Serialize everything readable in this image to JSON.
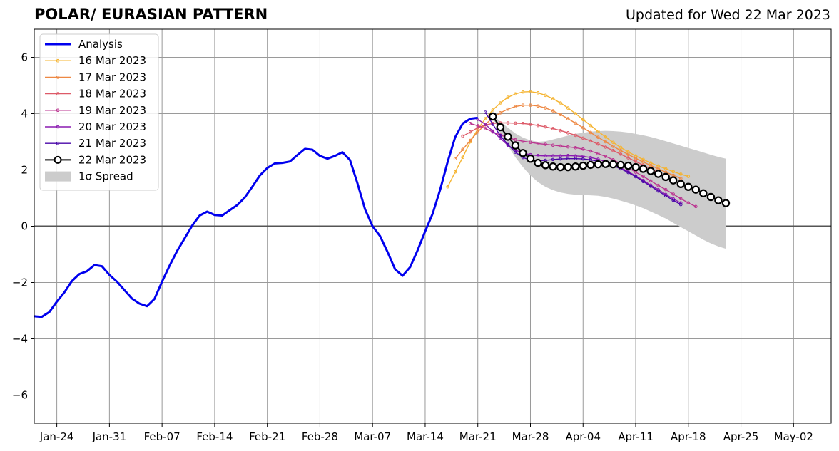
{
  "header": {
    "title": "POLAR/ EURASIAN  PATTERN",
    "subtitle": "Updated for Wed 22 Mar 2023"
  },
  "chart_data": {
    "type": "line",
    "title": "POLAR/ EURASIAN  PATTERN",
    "subtitle": "Updated for Wed 22 Mar 2023",
    "xlabel": "",
    "ylabel": "",
    "x_units": "days since 2023-01-21",
    "xlim": [
      0,
      106
    ],
    "ylim": [
      -7,
      7
    ],
    "grid": true,
    "legend_position": "top-left",
    "x_ticks": [
      {
        "x": 3,
        "label": "Jan-24"
      },
      {
        "x": 10,
        "label": "Jan-31"
      },
      {
        "x": 17,
        "label": "Feb-07"
      },
      {
        "x": 24,
        "label": "Feb-14"
      },
      {
        "x": 31,
        "label": "Feb-21"
      },
      {
        "x": 38,
        "label": "Feb-28"
      },
      {
        "x": 45,
        "label": "Mar-07"
      },
      {
        "x": 52,
        "label": "Mar-14"
      },
      {
        "x": 59,
        "label": "Mar-21"
      },
      {
        "x": 66,
        "label": "Mar-28"
      },
      {
        "x": 73,
        "label": "Apr-04"
      },
      {
        "x": 80,
        "label": "Apr-11"
      },
      {
        "x": 87,
        "label": "Apr-18"
      },
      {
        "x": 94,
        "label": "Apr-25"
      },
      {
        "x": 101,
        "label": "May-02"
      }
    ],
    "y_ticks": [
      {
        "y": 6,
        "label": "6"
      },
      {
        "y": 4,
        "label": "4"
      },
      {
        "y": 2,
        "label": "2"
      },
      {
        "y": 0,
        "label": "0"
      },
      {
        "y": -2,
        "label": "−2"
      },
      {
        "y": -4,
        "label": "−4"
      },
      {
        "y": -6,
        "label": "−6"
      }
    ],
    "analysis": {
      "name": "Analysis",
      "color": "#0000ee",
      "x0": 0,
      "values": [
        -3.2,
        -3.22,
        -3.05,
        -2.68,
        -2.35,
        -1.95,
        -1.7,
        -1.6,
        -1.38,
        -1.42,
        -1.73,
        -1.97,
        -2.27,
        -2.57,
        -2.75,
        -2.84,
        -2.58,
        -1.97,
        -1.4,
        -0.88,
        -0.43,
        0.02,
        0.38,
        0.52,
        0.4,
        0.38,
        0.57,
        0.75,
        1.02,
        1.4,
        1.8,
        2.07,
        2.23,
        2.25,
        2.3,
        2.53,
        2.75,
        2.72,
        2.5,
        2.4,
        2.5,
        2.63,
        2.35,
        1.52,
        0.6,
        0.0,
        -0.35,
        -0.92,
        -1.53,
        -1.76,
        -1.45,
        -0.85,
        -0.18,
        0.45,
        1.3,
        2.3,
        3.17,
        3.65,
        3.82,
        3.85
      ]
    },
    "forecasts": [
      {
        "name": "16 Mar 2023",
        "color": "#f5b431",
        "x0": 55,
        "values": [
          1.4,
          1.93,
          2.45,
          3.0,
          3.45,
          3.82,
          4.13,
          4.38,
          4.58,
          4.7,
          4.77,
          4.78,
          4.74,
          4.65,
          4.53,
          4.38,
          4.2,
          4.0,
          3.79,
          3.58,
          3.37,
          3.17,
          2.98,
          2.8,
          2.64,
          2.5,
          2.37,
          2.25,
          2.14,
          2.04,
          1.94,
          1.85,
          1.77
        ]
      },
      {
        "name": "17 Mar 2023",
        "color": "#ee8843",
        "x0": 56,
        "values": [
          2.4,
          2.73,
          3.05,
          3.35,
          3.62,
          3.85,
          4.03,
          4.16,
          4.25,
          4.3,
          4.3,
          4.27,
          4.2,
          4.1,
          3.97,
          3.82,
          3.66,
          3.5,
          3.33,
          3.16,
          3.0,
          2.84,
          2.69,
          2.55,
          2.41,
          2.28,
          2.16,
          2.04,
          1.92,
          1.81,
          1.7
        ]
      },
      {
        "name": "18 Mar 2023",
        "color": "#dd5a68",
        "x0": 57,
        "values": [
          3.2,
          3.35,
          3.5,
          3.6,
          3.65,
          3.67,
          3.67,
          3.66,
          3.65,
          3.62,
          3.58,
          3.53,
          3.47,
          3.4,
          3.32,
          3.23,
          3.13,
          3.03,
          2.92,
          2.81,
          2.69,
          2.56,
          2.43,
          2.3,
          2.17,
          2.04,
          1.9,
          1.77,
          1.64
        ]
      },
      {
        "name": "19 Mar 2023",
        "color": "#bb3590",
        "x0": 58,
        "values": [
          3.65,
          3.57,
          3.47,
          3.35,
          3.24,
          3.15,
          3.07,
          3.02,
          2.98,
          2.94,
          2.91,
          2.88,
          2.85,
          2.82,
          2.79,
          2.74,
          2.67,
          2.58,
          2.48,
          2.36,
          2.22,
          2.08,
          1.92,
          1.77,
          1.61,
          1.45,
          1.3,
          1.14,
          0.98,
          0.83,
          0.7
        ]
      },
      {
        "name": "20 Mar 2023",
        "color": "#8a1ab0",
        "x0": 59,
        "values": [
          3.8,
          3.62,
          3.38,
          3.12,
          2.88,
          2.7,
          2.6,
          2.54,
          2.51,
          2.5,
          2.5,
          2.5,
          2.51,
          2.5,
          2.48,
          2.44,
          2.38,
          2.3,
          2.2,
          2.08,
          1.94,
          1.79,
          1.63,
          1.46,
          1.3,
          1.13,
          0.97,
          0.83
        ]
      },
      {
        "name": "21 Mar 2023",
        "color": "#4a07a8",
        "x0": 60,
        "values": [
          4.05,
          3.62,
          3.22,
          2.9,
          2.63,
          2.44,
          2.35,
          2.33,
          2.34,
          2.37,
          2.39,
          2.4,
          2.4,
          2.39,
          2.36,
          2.31,
          2.24,
          2.15,
          2.04,
          1.91,
          1.76,
          1.59,
          1.42,
          1.25,
          1.08,
          0.92,
          0.77
        ]
      },
      {
        "name": "22 Mar 2023",
        "color": "#000000",
        "x0": 61,
        "values": [
          3.9,
          3.52,
          3.18,
          2.87,
          2.6,
          2.4,
          2.25,
          2.17,
          2.12,
          2.1,
          2.1,
          2.12,
          2.15,
          2.18,
          2.2,
          2.21,
          2.2,
          2.18,
          2.15,
          2.1,
          2.04,
          1.96,
          1.86,
          1.75,
          1.63,
          1.5,
          1.4,
          1.3,
          1.17,
          1.04,
          0.92,
          0.82
        ]
      }
    ],
    "spread": {
      "name": "1σ Spread",
      "color": "#cccccc",
      "x0": 61,
      "upper": [
        3.95,
        3.72,
        3.5,
        3.3,
        3.15,
        3.05,
        3.0,
        3.02,
        3.08,
        3.15,
        3.22,
        3.28,
        3.32,
        3.36,
        3.38,
        3.39,
        3.38,
        3.36,
        3.33,
        3.28,
        3.23,
        3.17,
        3.1,
        3.02,
        2.94,
        2.86,
        2.78,
        2.7,
        2.62,
        2.54,
        2.46,
        2.4
      ],
      "lower": [
        3.85,
        3.3,
        2.85,
        2.45,
        2.1,
        1.8,
        1.57,
        1.4,
        1.28,
        1.2,
        1.15,
        1.12,
        1.11,
        1.1,
        1.08,
        1.04,
        0.98,
        0.91,
        0.83,
        0.74,
        0.64,
        0.52,
        0.4,
        0.27,
        0.12,
        -0.03,
        -0.18,
        -0.33,
        -0.48,
        -0.61,
        -0.72,
        -0.8
      ]
    }
  }
}
